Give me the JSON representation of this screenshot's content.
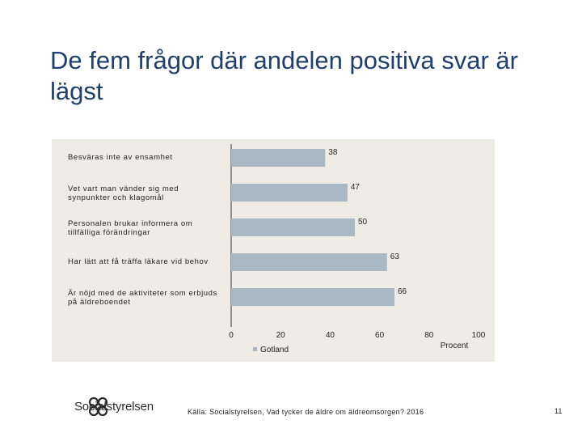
{
  "slide": {
    "title": "De fem frågor där andelen positiva svar är lägst",
    "source": "Källa: Socialstyrelsen, Vad tycker de äldre om äldreomsorgen? 2016",
    "page_number": "11",
    "logo_text": "Socialstyrelsen",
    "logo_icon": "socialstyrelsen-emblem-icon"
  },
  "chart_data": {
    "type": "bar",
    "orientation": "horizontal",
    "categories": [
      "Besväras inte av ensamhet",
      "Vet vart man vänder sig med synpunkter och klagomål",
      "Personalen brukar informera om tillfälliga förändringar",
      "Har lätt att få träffa läkare vid behov",
      "Är nöjd med de aktiviteter som erbjuds på äldreboendet"
    ],
    "series": [
      {
        "name": "Gotland",
        "values": [
          38,
          47,
          50,
          63,
          66
        ]
      }
    ],
    "data_labels": [
      "38",
      "47",
      "50",
      "63",
      "66"
    ],
    "x_ticks": [
      "0",
      "20",
      "40",
      "60",
      "80",
      "100"
    ],
    "xlim": [
      0,
      100
    ],
    "xlabel": "Procent",
    "legend_position": "bottom",
    "grid": false,
    "colors": {
      "bar": "#a9b9c3",
      "panel": "#efece5",
      "axis": "#333333",
      "title": "#1f3f6e"
    }
  }
}
